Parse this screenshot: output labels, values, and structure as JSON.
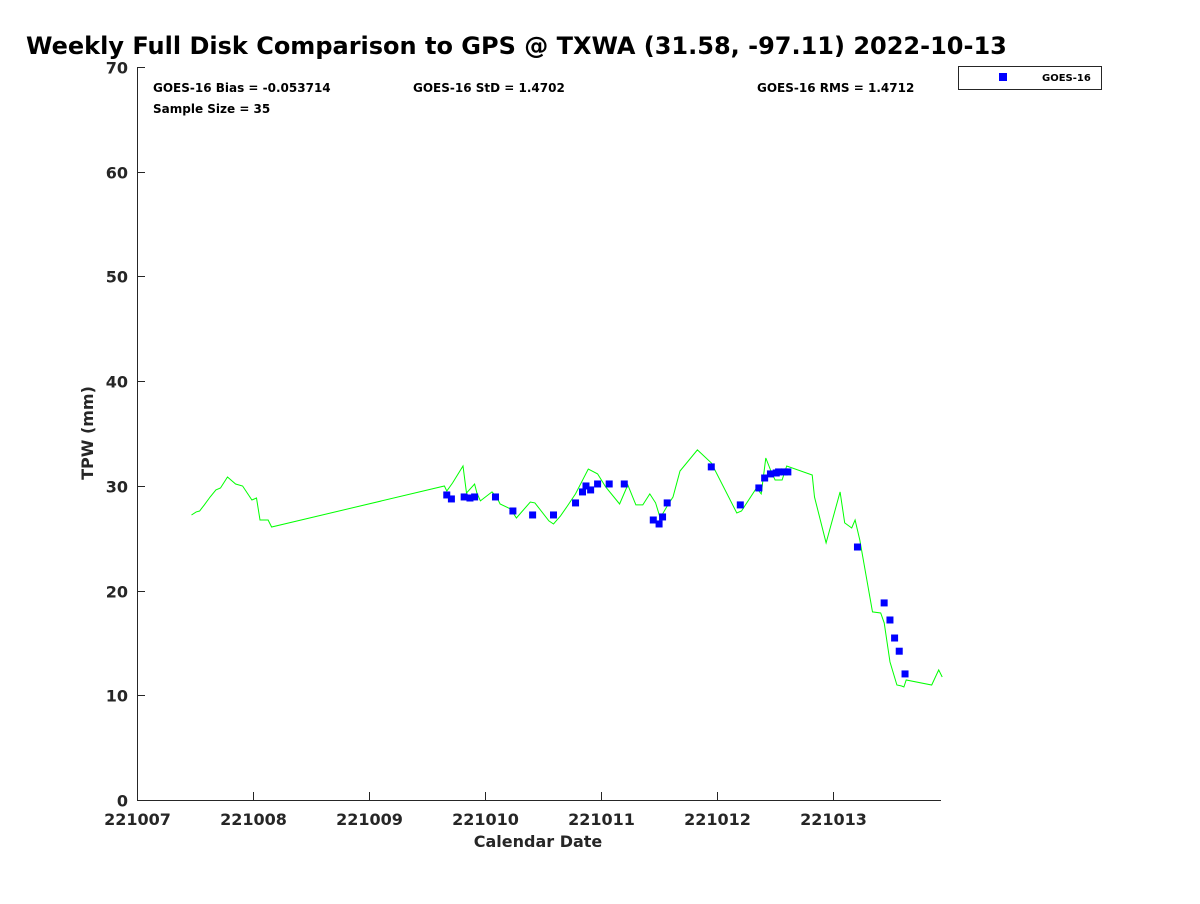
{
  "chart_data": {
    "type": "scatter",
    "title": "Weekly Full Disk Comparison to GPS @ TXWA (31.58, -97.11) 2022-10-13",
    "xlabel": "Calendar Date",
    "ylabel": "TPW (mm)",
    "xlim": [
      7,
      13.93
    ],
    "ylim": [
      0,
      70
    ],
    "x_unit_note": "day of Oct 2022",
    "xticks": [
      7,
      8,
      9,
      10,
      11,
      12,
      13
    ],
    "xtick_labels": [
      "221007",
      "221008",
      "221009",
      "221010",
      "221011",
      "221012",
      "221013"
    ],
    "yticks": [
      0,
      10,
      20,
      30,
      40,
      50,
      60,
      70
    ],
    "ytick_labels": [
      "0",
      "10",
      "20",
      "30",
      "40",
      "50",
      "60",
      "70"
    ],
    "grid": false,
    "legend": {
      "placement": "top-right-outside",
      "entries": [
        "GOES-16"
      ]
    },
    "stats": {
      "bias": "GOES-16 Bias = -0.053714",
      "std": "GOES-16 StD = 1.4702",
      "rms": "GOES-16 RMS = 1.4712",
      "sample": "Sample Size = 35"
    },
    "series": [
      {
        "name": "GPS",
        "kind": "line",
        "color": "#00ff00",
        "x": [
          7.47,
          7.51,
          7.54,
          7.58,
          7.63,
          7.68,
          7.72,
          7.78,
          7.85,
          7.91,
          7.99,
          8.03,
          8.06,
          8.13,
          8.16,
          9.65,
          9.67,
          9.72,
          9.81,
          9.84,
          9.91,
          9.93,
          9.96,
          10.06,
          10.1,
          10.13,
          10.22,
          10.27,
          10.39,
          10.43,
          10.55,
          10.59,
          10.65,
          10.71,
          10.78,
          10.89,
          10.97,
          11.04,
          11.16,
          11.23,
          11.3,
          11.36,
          11.42,
          11.47,
          11.51,
          11.58,
          11.62,
          11.68,
          11.83,
          11.95,
          12.17,
          12.21,
          12.34,
          12.38,
          12.42,
          12.46,
          12.5,
          12.56,
          12.6,
          12.82,
          12.84,
          12.94,
          13.06,
          13.1,
          13.16,
          13.19,
          13.23,
          13.34,
          13.41,
          13.44,
          13.49,
          13.55,
          13.59,
          13.61,
          13.63,
          13.85,
          13.91,
          13.94
        ],
        "y": [
          27.22,
          27.51,
          27.6,
          28.18,
          28.94,
          29.61,
          29.8,
          30.85,
          30.18,
          29.99,
          28.65,
          28.84,
          26.74,
          26.74,
          26.07,
          29.99,
          29.51,
          30.28,
          31.9,
          29.32,
          30.18,
          29.32,
          28.56,
          29.42,
          28.94,
          28.27,
          27.79,
          26.93,
          28.46,
          28.37,
          26.65,
          26.36,
          27.13,
          28.08,
          29.23,
          31.61,
          31.14,
          29.89,
          28.27,
          30.09,
          28.18,
          28.18,
          29.23,
          28.37,
          26.93,
          28.27,
          28.94,
          31.42,
          33.43,
          32.19,
          27.41,
          27.6,
          29.8,
          29.23,
          32.66,
          31.52,
          30.56,
          30.56,
          31.9,
          31.04,
          28.94,
          24.55,
          29.42,
          26.46,
          25.98,
          26.74,
          24.83,
          17.96,
          17.86,
          16.91,
          13.18,
          10.98,
          10.89,
          10.79,
          11.46,
          10.98,
          12.42,
          11.75
        ]
      },
      {
        "name": "GOES-16",
        "kind": "scatter",
        "color": "#0000ff",
        "x": [
          9.67,
          9.71,
          9.82,
          9.87,
          9.91,
          10.09,
          10.24,
          10.41,
          10.59,
          10.78,
          10.84,
          10.87,
          10.91,
          10.97,
          11.07,
          11.2,
          11.45,
          11.5,
          11.53,
          11.57,
          11.95,
          12.2,
          12.36,
          12.41,
          12.46,
          12.51,
          12.53,
          12.58,
          12.61,
          13.21,
          13.44,
          13.49,
          13.53,
          13.57,
          13.62
        ],
        "y": [
          29.13,
          28.75,
          28.94,
          28.84,
          28.94,
          28.94,
          27.6,
          27.22,
          27.22,
          28.37,
          29.42,
          29.99,
          29.61,
          30.18,
          30.18,
          30.18,
          26.74,
          26.36,
          27.03,
          28.37,
          31.81,
          28.18,
          29.8,
          30.75,
          31.14,
          31.23,
          31.33,
          31.33,
          31.33,
          24.16,
          18.82,
          17.19,
          15.47,
          14.21,
          12.04
        ]
      }
    ]
  }
}
